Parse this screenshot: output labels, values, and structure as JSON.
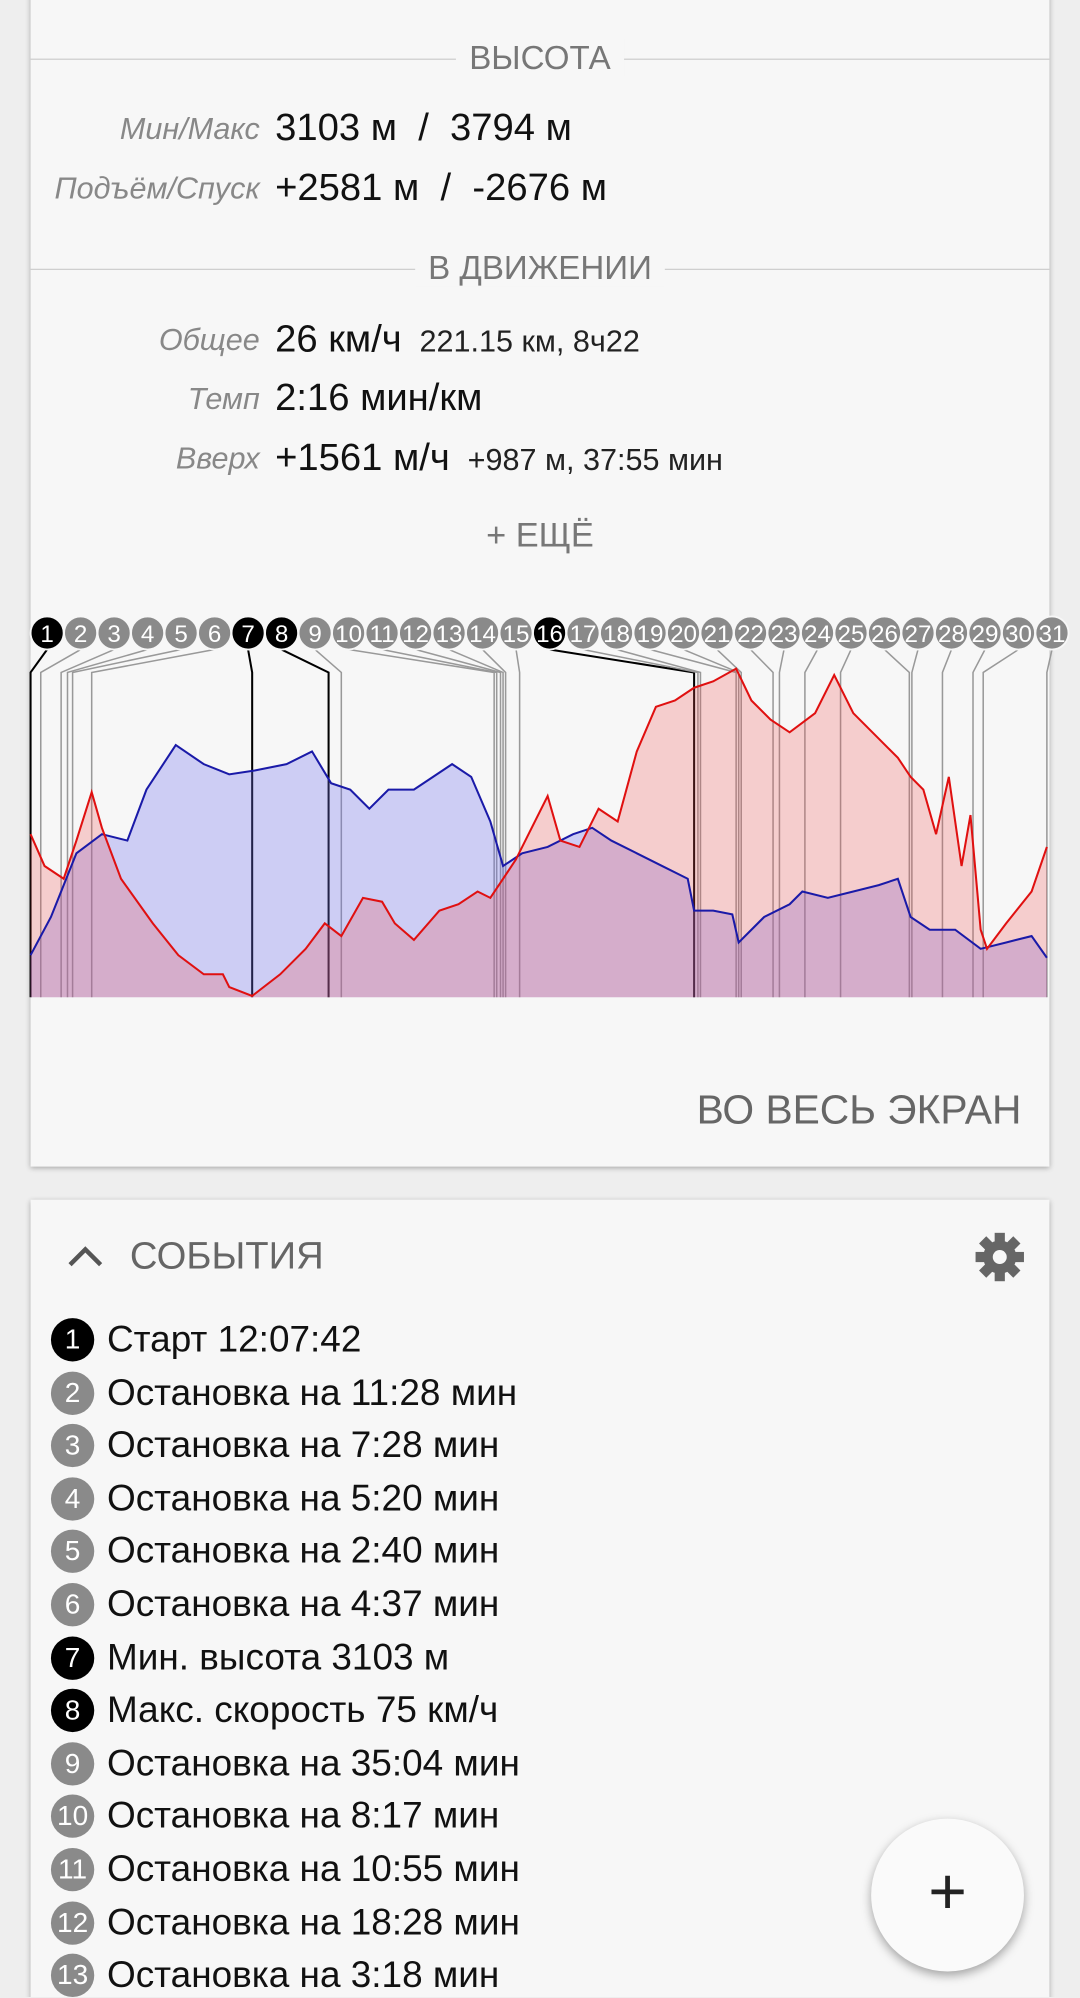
{
  "stats": {
    "elevation": {
      "title": "ВЫСОТА",
      "rows": [
        {
          "label": "Мин/Макс",
          "value": "3103 м  /  3794 м"
        },
        {
          "label": "Подъём/Спуск",
          "value": "+2581 м  /  -2676 м"
        }
      ]
    },
    "moving": {
      "title": "В ДВИЖЕНИИ",
      "rows": [
        {
          "label": "Общее",
          "value": "26 км/ч",
          "detail": "221.15 км, 8ч22"
        },
        {
          "label": "Темп",
          "value": "2:16 мин/км"
        },
        {
          "label": "Вверх",
          "value": "+1561 м/ч",
          "detail": "+987 м, 37:55 мин"
        }
      ]
    },
    "more": "+ ЕЩЁ"
  },
  "chart": {
    "markers": [
      {
        "label": "1",
        "highlight": true
      },
      {
        "label": "2"
      },
      {
        "label": "3"
      },
      {
        "label": "4"
      },
      {
        "label": "5"
      },
      {
        "label": "6"
      },
      {
        "label": "7",
        "highlight": true
      },
      {
        "label": "8",
        "highlight": true
      },
      {
        "label": "9"
      },
      {
        "label": "10"
      },
      {
        "label": "11"
      },
      {
        "label": "12"
      },
      {
        "label": "13"
      },
      {
        "label": "14"
      },
      {
        "label": "15"
      },
      {
        "label": "16",
        "highlight": true
      },
      {
        "label": "17"
      },
      {
        "label": "18"
      },
      {
        "label": "19"
      },
      {
        "label": "20"
      },
      {
        "label": "21"
      },
      {
        "label": "22"
      },
      {
        "label": "23"
      },
      {
        "label": "24"
      },
      {
        "label": "25"
      },
      {
        "label": "26"
      },
      {
        "label": "27"
      },
      {
        "label": "28"
      },
      {
        "label": "29"
      },
      {
        "label": "30"
      },
      {
        "label": "31"
      }
    ]
  },
  "fullscreen": "ВО ВЕСЬ ЭКРАН",
  "events": {
    "title": "СОБЫТИЯ",
    "items": [
      {
        "number": "1",
        "text": "Старт 12:07:42",
        "highlight": true
      },
      {
        "number": "2",
        "text": "Остановка на 11:28 мин"
      },
      {
        "number": "3",
        "text": "Остановка на 7:28 мин"
      },
      {
        "number": "4",
        "text": "Остановка на 5:20 мин"
      },
      {
        "number": "5",
        "text": "Остановка на 2:40 мин"
      },
      {
        "number": "6",
        "text": "Остановка на 4:37 мин"
      },
      {
        "number": "7",
        "text": "Мин. высота 3103 м",
        "highlight": true
      },
      {
        "number": "8",
        "text": "Макс. скорость 75 км/ч",
        "highlight": true
      },
      {
        "number": "9",
        "text": "Остановка на 35:04 мин"
      },
      {
        "number": "10",
        "text": "Остановка на 8:17 мин"
      },
      {
        "number": "11",
        "text": "Остановка на 10:55 мин"
      },
      {
        "number": "12",
        "text": "Остановка на 18:28 мин"
      },
      {
        "number": "13",
        "text": "Остановка на 3:18 мин"
      }
    ]
  },
  "fab": "+"
}
